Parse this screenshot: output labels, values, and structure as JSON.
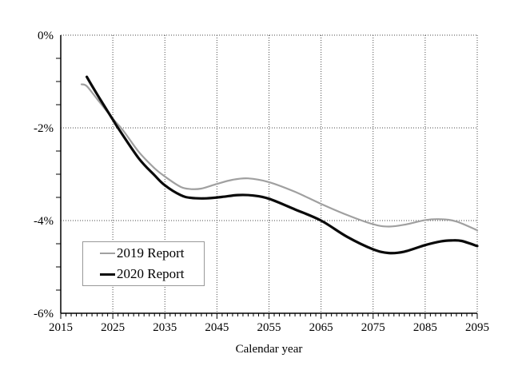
{
  "figure": {
    "background": "#ffffff",
    "grid_color": "#4a4a4a",
    "axis_color": "#000000"
  },
  "chart_data": {
    "type": "line",
    "title": "",
    "xlabel": "Calendar year",
    "ylabel": "",
    "xlim": [
      2015,
      2095
    ],
    "ylim": [
      -6,
      0
    ],
    "x_major_ticks": [
      2015,
      2025,
      2035,
      2045,
      2055,
      2065,
      2075,
      2085,
      2095
    ],
    "x_tick_labels": [
      "2015",
      "2025",
      "2035",
      "2045",
      "2055",
      "2065",
      "2075",
      "2085",
      "2095"
    ],
    "x_minor_tick_step": 1,
    "y_major_ticks": [
      0,
      -2,
      -4,
      -6
    ],
    "y_tick_labels": [
      "0%",
      "-2%",
      "-4%",
      "-6%"
    ],
    "y_minor_tick_step": 0.5,
    "grid": "dotted gridlines at every major tick, both axes",
    "legend_position": "inside lower-left",
    "series": [
      {
        "name": "2019 Report",
        "color": "#a0a0a0",
        "stroke_width": 2.2,
        "points": [
          [
            2019,
            -1.06
          ],
          [
            2020,
            -1.1
          ],
          [
            2022,
            -1.38
          ],
          [
            2025,
            -1.8
          ],
          [
            2027,
            -2.06
          ],
          [
            2030,
            -2.52
          ],
          [
            2033,
            -2.87
          ],
          [
            2035,
            -3.05
          ],
          [
            2038,
            -3.27
          ],
          [
            2040,
            -3.32
          ],
          [
            2042,
            -3.31
          ],
          [
            2045,
            -3.21
          ],
          [
            2048,
            -3.12
          ],
          [
            2051,
            -3.09
          ],
          [
            2055,
            -3.17
          ],
          [
            2060,
            -3.38
          ],
          [
            2065,
            -3.64
          ],
          [
            2070,
            -3.88
          ],
          [
            2075,
            -4.08
          ],
          [
            2078,
            -4.13
          ],
          [
            2081,
            -4.09
          ],
          [
            2085,
            -3.99
          ],
          [
            2088,
            -3.97
          ],
          [
            2091,
            -4.02
          ],
          [
            2095,
            -4.21
          ]
        ]
      },
      {
        "name": "2020 Report",
        "color": "#0a0a0a",
        "stroke_width": 3.2,
        "points": [
          [
            2020,
            -0.9
          ],
          [
            2022,
            -1.28
          ],
          [
            2025,
            -1.82
          ],
          [
            2026,
            -2.0
          ],
          [
            2030,
            -2.66
          ],
          [
            2033,
            -3.02
          ],
          [
            2035,
            -3.24
          ],
          [
            2038,
            -3.45
          ],
          [
            2040,
            -3.51
          ],
          [
            2043,
            -3.52
          ],
          [
            2046,
            -3.49
          ],
          [
            2049,
            -3.45
          ],
          [
            2052,
            -3.46
          ],
          [
            2055,
            -3.53
          ],
          [
            2060,
            -3.76
          ],
          [
            2065,
            -4.0
          ],
          [
            2070,
            -4.35
          ],
          [
            2075,
            -4.62
          ],
          [
            2078,
            -4.7
          ],
          [
            2081,
            -4.67
          ],
          [
            2085,
            -4.53
          ],
          [
            2088,
            -4.45
          ],
          [
            2090,
            -4.43
          ],
          [
            2092,
            -4.44
          ],
          [
            2095,
            -4.55
          ]
        ]
      }
    ]
  }
}
